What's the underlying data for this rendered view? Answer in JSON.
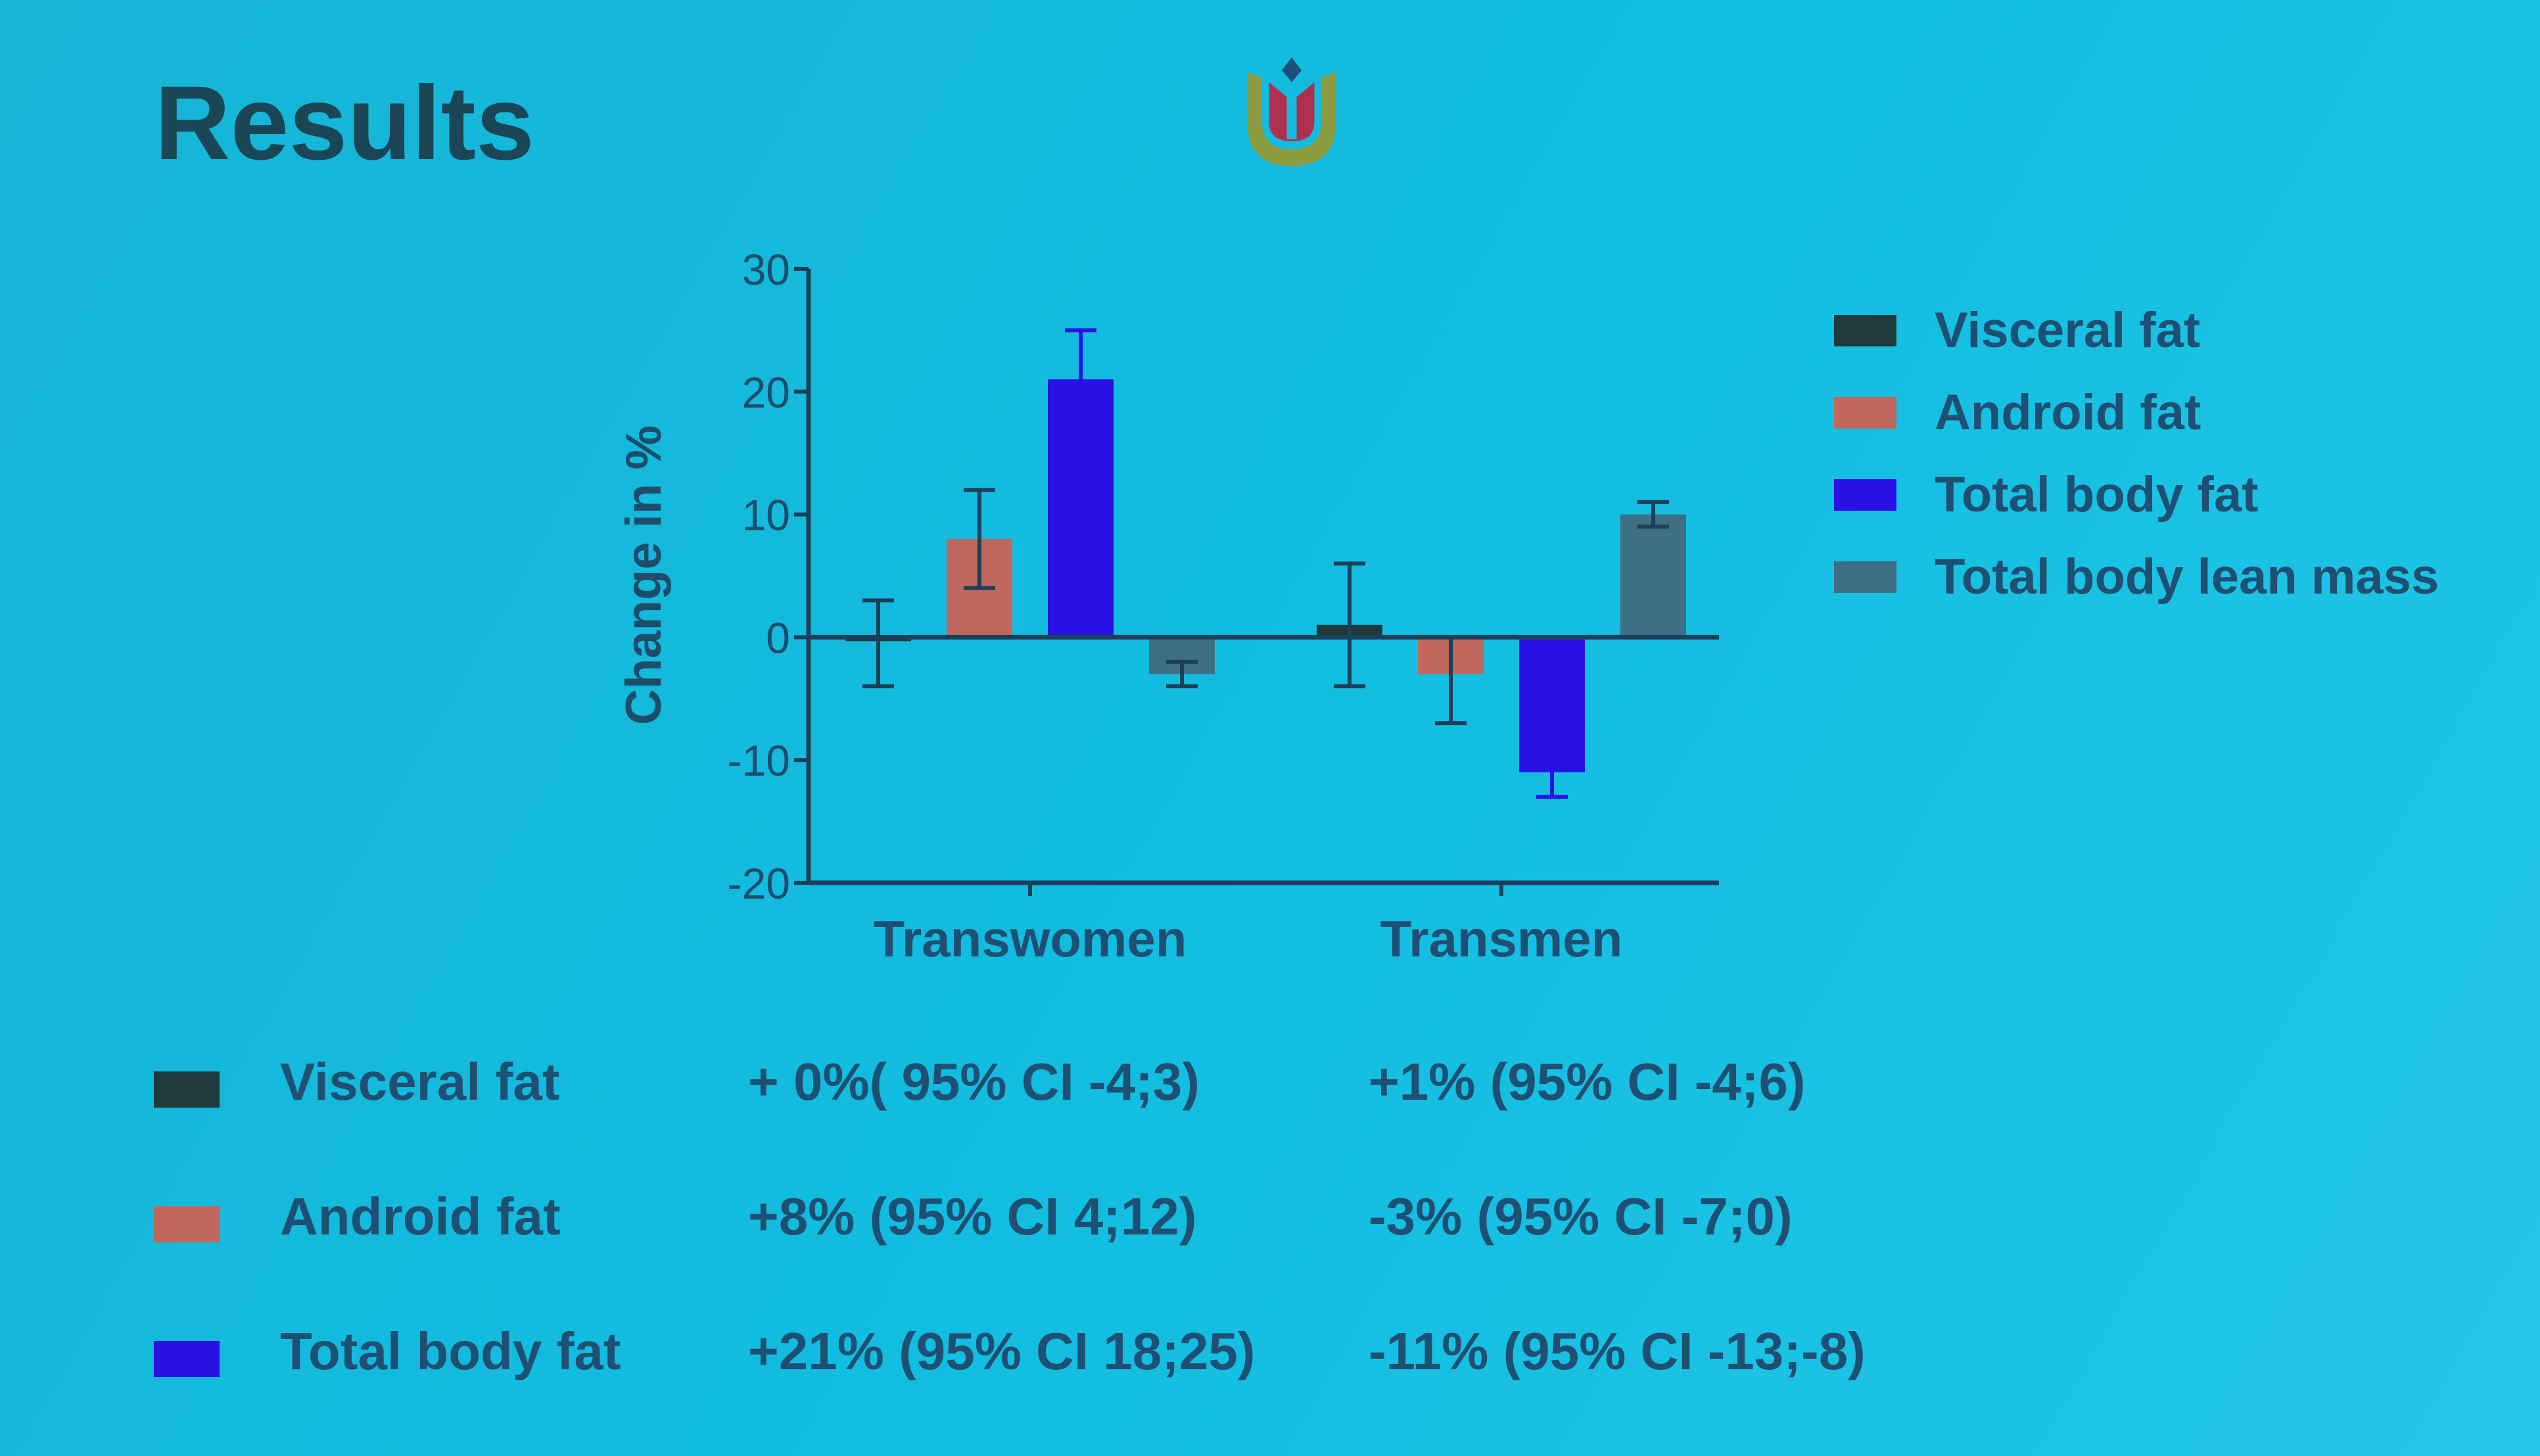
{
  "title": "Results",
  "colors": {
    "visceral": "#1f3a3c",
    "android": "#c0675e",
    "total": "#2a12e6",
    "lean": "#3f6f84",
    "axis": "#1d3f5a"
  },
  "chart_data": {
    "type": "bar",
    "ylabel": "Change in %",
    "xlabel": "",
    "ylim": [
      -20,
      30
    ],
    "yticks": [
      "30",
      "20",
      "10",
      "0",
      "-10",
      "-20"
    ],
    "ytick_values": [
      30,
      20,
      10,
      0,
      -10,
      -20
    ],
    "categories": [
      "Transwomen",
      "Transmen"
    ],
    "series": [
      {
        "name": "Visceral fat",
        "color": "#1f3a3c",
        "values": [
          0,
          1
        ],
        "ci_low": [
          -4,
          -4
        ],
        "ci_high": [
          3,
          6
        ]
      },
      {
        "name": "Android fat",
        "color": "#c0675e",
        "values": [
          8,
          -3
        ],
        "ci_low": [
          4,
          -7
        ],
        "ci_high": [
          12,
          0
        ]
      },
      {
        "name": "Total body fat",
        "color": "#2a12e6",
        "values": [
          21,
          -11
        ],
        "ci_low": [
          18,
          -13
        ],
        "ci_high": [
          25,
          -8
        ]
      },
      {
        "name": "Total body lean mass",
        "color": "#3f6f84",
        "values": [
          -3,
          10
        ],
        "ci_low": [
          -4,
          9
        ],
        "ci_high": [
          -2,
          11
        ]
      }
    ],
    "legend_position": "right"
  },
  "table": [
    {
      "label": "Visceral fat",
      "transwomen": "+ 0%( 95% CI -4;3)",
      "transmen": "+1% (95% CI -4;6)",
      "color": "#1f3a3c"
    },
    {
      "label": "Android fat",
      "transwomen": "+8% (95% CI 4;12)",
      "transmen": "-3% (95% CI -7;0)",
      "color": "#c0675e"
    },
    {
      "label": "Total body fat",
      "transwomen": "+21% (95% CI 18;25)",
      "transmen": "-11% (95% CI -13;-8)",
      "color": "#2a12e6"
    }
  ]
}
